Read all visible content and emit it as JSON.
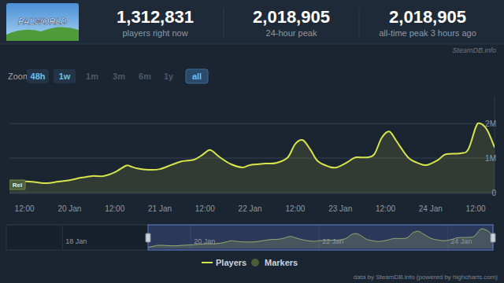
{
  "header": {
    "game": "PALWORLD",
    "stats": [
      {
        "value": "1,312,831",
        "label": "players right now"
      },
      {
        "value": "2,018,905",
        "label": "24-hour peak"
      },
      {
        "value": "2,018,905",
        "label": "all-time peak 3 hours ago"
      }
    ]
  },
  "watermark": "SteamDB.info",
  "zoom": {
    "label": "Zoom",
    "buttons": [
      "48h",
      "1w",
      "1m",
      "3m",
      "6m",
      "1y",
      "all"
    ]
  },
  "credits": "data by SteamDB.info (powered by highcharts.com)",
  "chart_data": [
    {
      "type": "area",
      "x": [
        8,
        10,
        12,
        15,
        18,
        21,
        24,
        27,
        30,
        33,
        36,
        39,
        40,
        42,
        45,
        48,
        51,
        54,
        57,
        59,
        61,
        62,
        64,
        67,
        70,
        72,
        76,
        79,
        82,
        84,
        86,
        88,
        90,
        93,
        95,
        98,
        100,
        103,
        105,
        107,
        109,
        111,
        114,
        117,
        119,
        122,
        124,
        128,
        130,
        132,
        133,
        135,
        137
      ],
      "series": [
        {
          "name": "Players",
          "color": "#d7e54a",
          "values": [
            110000,
            230000,
            320000,
            300000,
            270000,
            320000,
            360000,
            430000,
            480000,
            480000,
            590000,
            780000,
            770000,
            700000,
            660000,
            680000,
            800000,
            910000,
            950000,
            1070000,
            1230000,
            1200000,
            1020000,
            820000,
            730000,
            800000,
            840000,
            860000,
            1020000,
            1410000,
            1520000,
            1250000,
            910000,
            750000,
            730000,
            890000,
            1020000,
            1020000,
            1110000,
            1590000,
            1770000,
            1480000,
            1020000,
            840000,
            800000,
            950000,
            1110000,
            1140000,
            1250000,
            1890000,
            2010000,
            1820000,
            1310000
          ]
        },
        {
          "name": "Markers",
          "type": "flag",
          "color": "#4a5d36",
          "x": [
            8
          ],
          "labels": [
            "Rel"
          ]
        }
      ],
      "xlim": [
        8,
        137
      ],
      "ylim": [
        0,
        2800000
      ],
      "xticks": [
        {
          "value": 12,
          "label": "12:00"
        },
        {
          "value": 24,
          "label": "20 Jan"
        },
        {
          "value": 36,
          "label": "12:00"
        },
        {
          "value": 48,
          "label": "21 Jan"
        },
        {
          "value": 60,
          "label": "12:00"
        },
        {
          "value": 72,
          "label": "22 Jan"
        },
        {
          "value": 84,
          "label": "12:00"
        },
        {
          "value": 96,
          "label": "23 Jan"
        },
        {
          "value": 108,
          "label": "12:00"
        },
        {
          "value": 120,
          "label": "24 Jan"
        },
        {
          "value": 132,
          "label": "12:00"
        }
      ],
      "yticks": [
        0,
        {
          "value": 1000000,
          "label": "1M"
        },
        {
          "value": 2000000,
          "label": "2M"
        }
      ],
      "grid": true,
      "legend": "bottom"
    },
    {
      "type": "area",
      "x": [
        8,
        10,
        12,
        15,
        18,
        21,
        24,
        27,
        30,
        33,
        36,
        39,
        40,
        42,
        45,
        48,
        51,
        54,
        57,
        59,
        61,
        62,
        64,
        67,
        70,
        72,
        76,
        79,
        82,
        84,
        86,
        88,
        90,
        93,
        95,
        98,
        100,
        103,
        105,
        107,
        109,
        111,
        114,
        117,
        119,
        122,
        124,
        128,
        130,
        132,
        133,
        135,
        137
      ],
      "values": [
        110000,
        230000,
        320000,
        300000,
        270000,
        320000,
        360000,
        430000,
        480000,
        480000,
        590000,
        780000,
        770000,
        700000,
        660000,
        680000,
        800000,
        910000,
        950000,
        1070000,
        1230000,
        1200000,
        1020000,
        820000,
        730000,
        800000,
        840000,
        860000,
        1020000,
        1410000,
        1520000,
        1250000,
        910000,
        750000,
        730000,
        890000,
        1020000,
        1020000,
        1110000,
        1590000,
        1770000,
        1480000,
        1020000,
        840000,
        800000,
        950000,
        1110000,
        1140000,
        1250000,
        1890000,
        2010000,
        1820000,
        1310000
      ],
      "color": "#d7e54a",
      "xlim": [
        -45,
        137
      ],
      "ylim": [
        0,
        2100000
      ],
      "xticks": [
        {
          "value": -24,
          "label": "18 Jan"
        },
        {
          "value": 24,
          "label": "20 Jan"
        },
        {
          "value": 72,
          "label": "22 Jan"
        },
        {
          "value": 120,
          "label": "24 Jan"
        }
      ],
      "tick_labels": "x"
    }
  ]
}
